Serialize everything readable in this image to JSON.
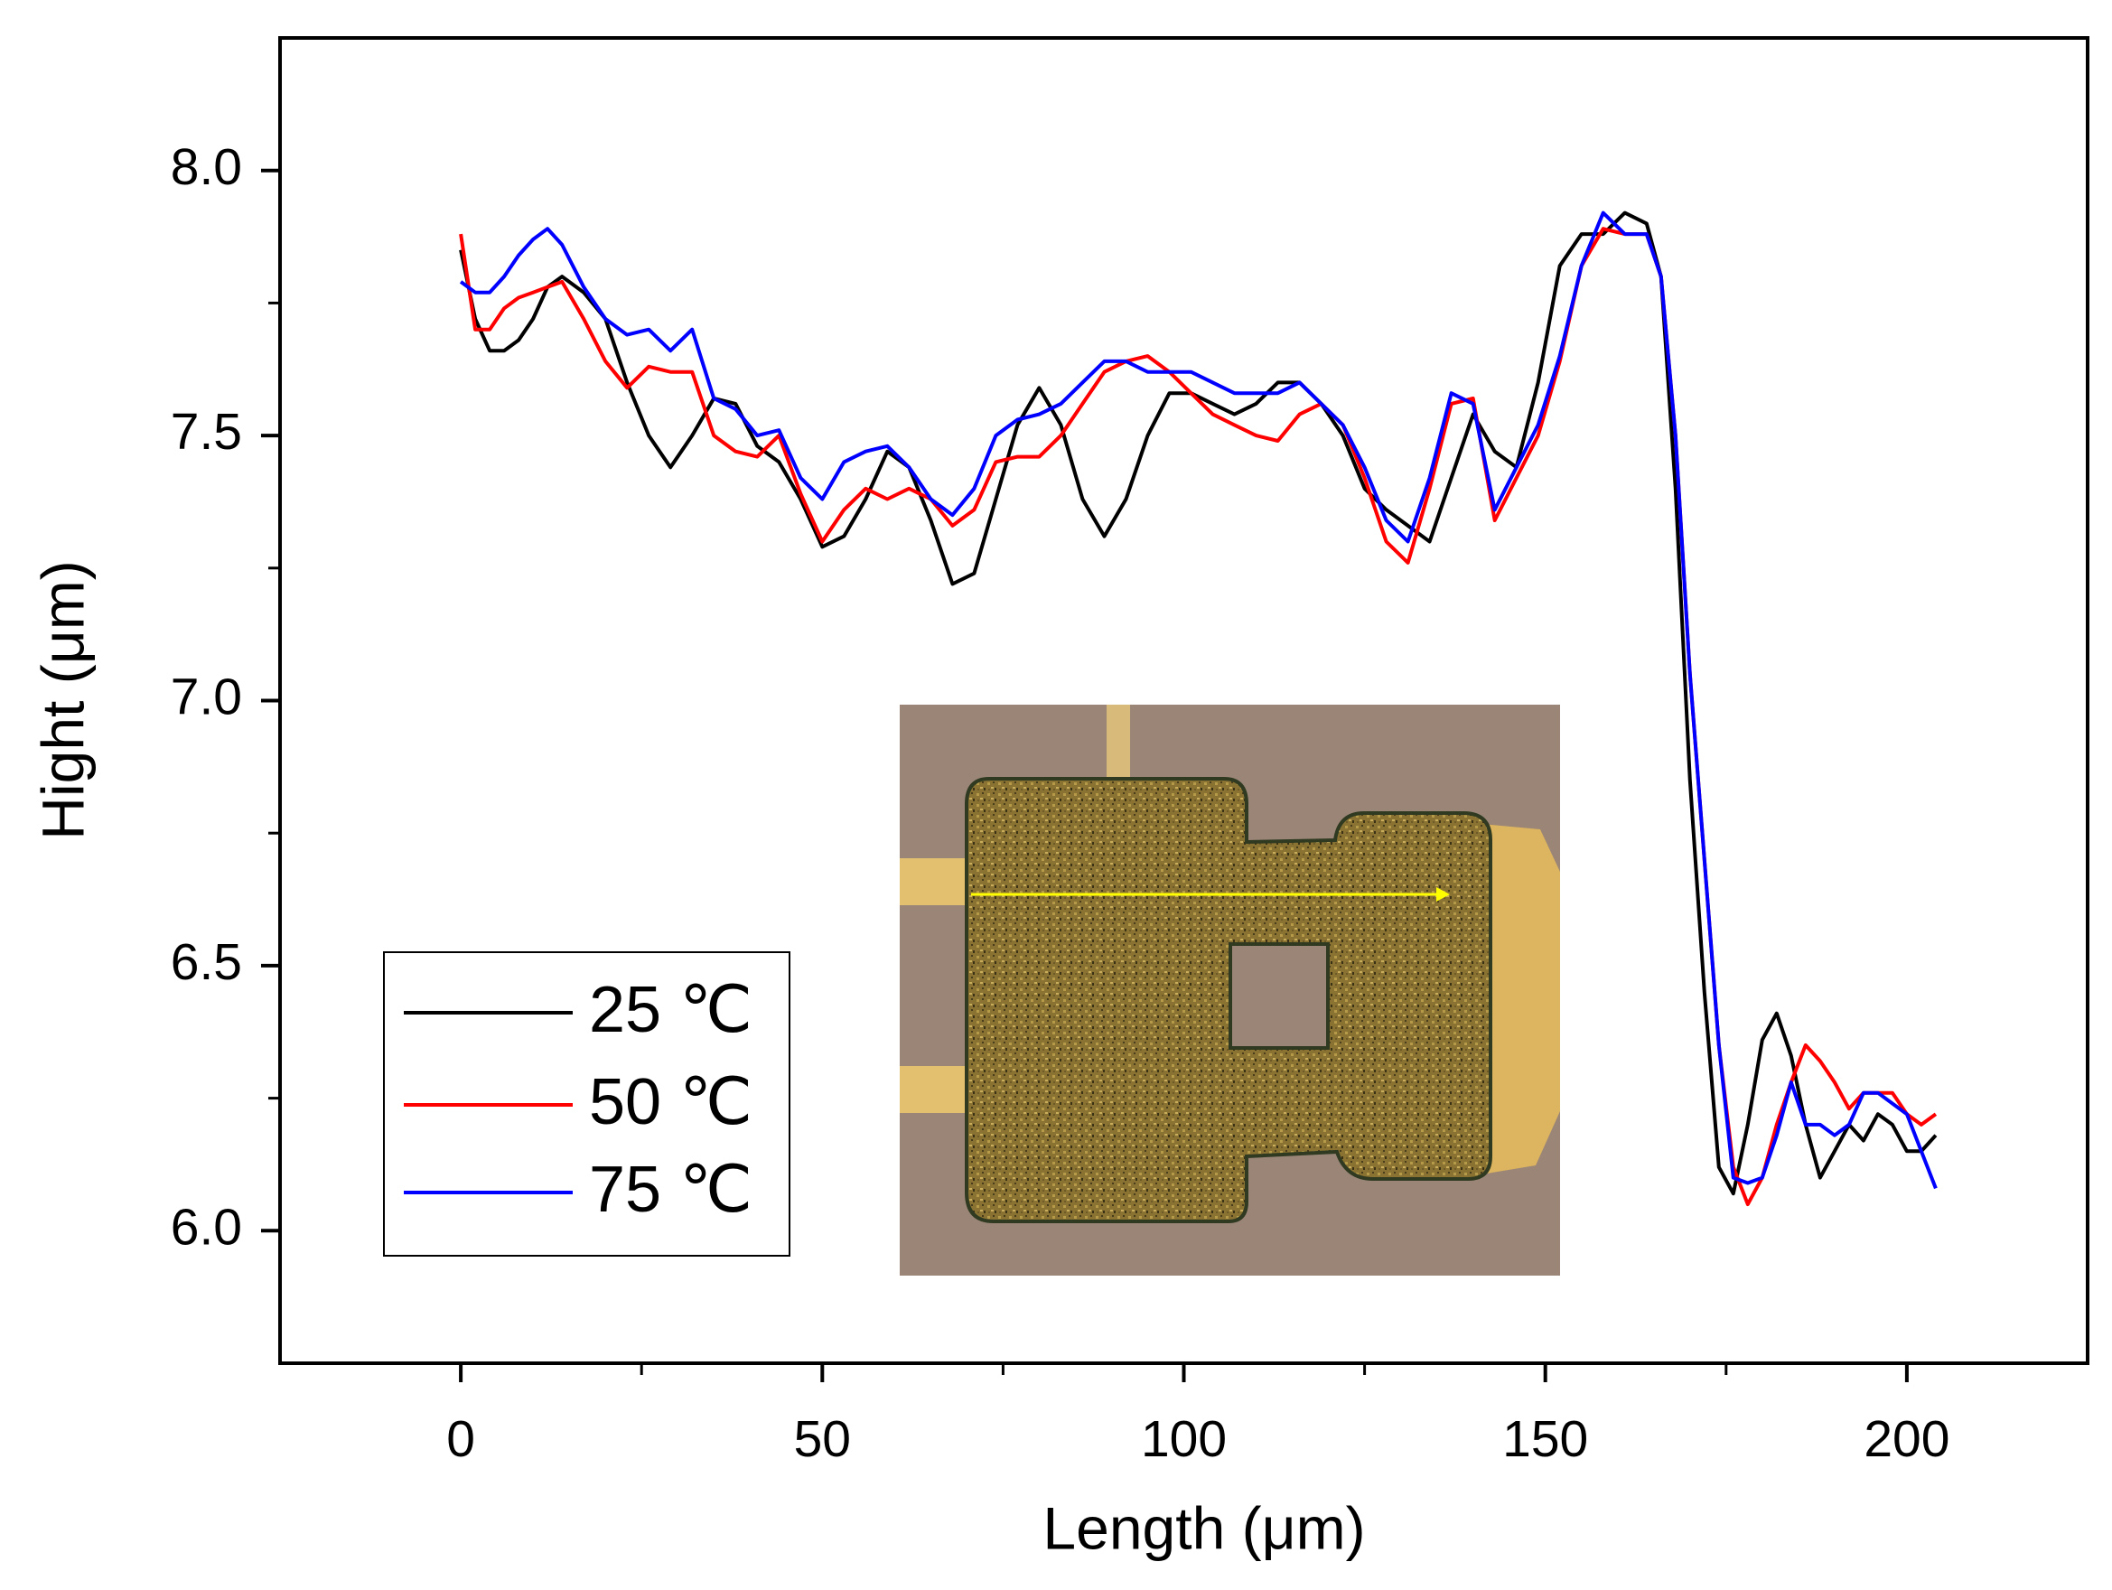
{
  "chart_data": {
    "type": "line",
    "xlabel": "Length (μm)",
    "ylabel": "Hight (μm)",
    "xlim": [
      -25,
      225
    ],
    "ylim": [
      5.75,
      8.25
    ],
    "xticks": [
      0,
      50,
      100,
      150,
      200
    ],
    "xminorticks": [
      25,
      75,
      125,
      175
    ],
    "yticks": [
      {
        "value": 6,
        "label": "6.0"
      },
      {
        "value": 6.5,
        "label": "6.5"
      },
      {
        "value": 7,
        "label": "7.0"
      },
      {
        "value": 7.5,
        "label": "7.5"
      },
      {
        "value": 8,
        "label": "8.0"
      }
    ],
    "yminorticks": [
      6.25,
      6.75,
      7.25,
      7.75
    ],
    "legend": "lower left",
    "x": [
      0,
      2,
      4,
      6,
      8,
      10,
      12,
      14,
      17,
      20,
      23,
      26,
      29,
      32,
      35,
      38,
      41,
      44,
      47,
      50,
      53,
      56,
      59,
      62,
      65,
      68,
      71,
      74,
      77,
      80,
      83,
      86,
      89,
      92,
      95,
      98,
      101,
      104,
      107,
      110,
      113,
      116,
      119,
      122,
      125,
      128,
      131,
      134,
      137,
      140,
      143,
      146,
      149,
      152,
      155,
      158,
      161,
      164,
      166,
      168,
      170,
      172,
      174,
      176,
      178,
      180,
      182,
      184,
      186,
      188,
      190,
      192,
      194,
      196,
      198,
      200,
      202,
      204
    ],
    "series": [
      {
        "name": "25 ℃",
        "color": "#000000",
        "values": [
          7.85,
          7.72,
          7.66,
          7.66,
          7.68,
          7.72,
          7.78,
          7.8,
          7.77,
          7.72,
          7.6,
          7.5,
          7.44,
          7.5,
          7.57,
          7.56,
          7.48,
          7.45,
          7.38,
          7.29,
          7.31,
          7.38,
          7.47,
          7.44,
          7.34,
          7.22,
          7.24,
          7.38,
          7.52,
          7.59,
          7.52,
          7.38,
          7.31,
          7.38,
          7.5,
          7.58,
          7.58,
          7.56,
          7.54,
          7.56,
          7.6,
          7.6,
          7.56,
          7.5,
          7.4,
          7.36,
          7.33,
          7.3,
          7.42,
          7.54,
          7.47,
          7.44,
          7.6,
          7.82,
          7.88,
          7.88,
          7.92,
          7.9,
          7.8,
          7.4,
          6.85,
          6.45,
          6.12,
          6.07,
          6.2,
          6.36,
          6.41,
          6.33,
          6.2,
          6.1,
          6.15,
          6.2,
          6.17,
          6.22,
          6.2,
          6.15,
          6.15,
          6.18
        ]
      },
      {
        "name": "50 ℃",
        "color": "#ff0000",
        "values": [
          7.88,
          7.7,
          7.7,
          7.74,
          7.76,
          7.77,
          7.78,
          7.79,
          7.72,
          7.64,
          7.59,
          7.63,
          7.62,
          7.62,
          7.5,
          7.47,
          7.46,
          7.5,
          7.39,
          7.3,
          7.36,
          7.4,
          7.38,
          7.4,
          7.38,
          7.33,
          7.36,
          7.45,
          7.46,
          7.46,
          7.5,
          7.56,
          7.62,
          7.64,
          7.65,
          7.62,
          7.58,
          7.54,
          7.52,
          7.5,
          7.49,
          7.54,
          7.56,
          7.52,
          7.42,
          7.3,
          7.26,
          7.4,
          7.56,
          7.57,
          7.34,
          7.42,
          7.5,
          7.64,
          7.82,
          7.89,
          7.88,
          7.88,
          7.8,
          7.5,
          7.05,
          6.7,
          6.35,
          6.12,
          6.05,
          6.1,
          6.2,
          6.28,
          6.35,
          6.32,
          6.28,
          6.23,
          6.26,
          6.26,
          6.26,
          6.22,
          6.2,
          6.22
        ]
      },
      {
        "name": "75 ℃",
        "color": "#0000ff",
        "values": [
          7.79,
          7.77,
          7.77,
          7.8,
          7.84,
          7.87,
          7.89,
          7.86,
          7.78,
          7.72,
          7.69,
          7.7,
          7.66,
          7.7,
          7.57,
          7.55,
          7.5,
          7.51,
          7.42,
          7.38,
          7.45,
          7.47,
          7.48,
          7.44,
          7.38,
          7.35,
          7.4,
          7.5,
          7.53,
          7.54,
          7.56,
          7.6,
          7.64,
          7.64,
          7.62,
          7.62,
          7.62,
          7.6,
          7.58,
          7.58,
          7.58,
          7.6,
          7.56,
          7.52,
          7.44,
          7.34,
          7.3,
          7.42,
          7.58,
          7.56,
          7.36,
          7.44,
          7.52,
          7.65,
          7.82,
          7.92,
          7.88,
          7.88,
          7.8,
          7.5,
          7.05,
          6.7,
          6.35,
          6.1,
          6.09,
          6.1,
          6.18,
          6.28,
          6.2,
          6.2,
          6.18,
          6.2,
          6.26,
          6.26,
          6.24,
          6.22,
          6.15,
          6.08
        ]
      }
    ]
  }
}
